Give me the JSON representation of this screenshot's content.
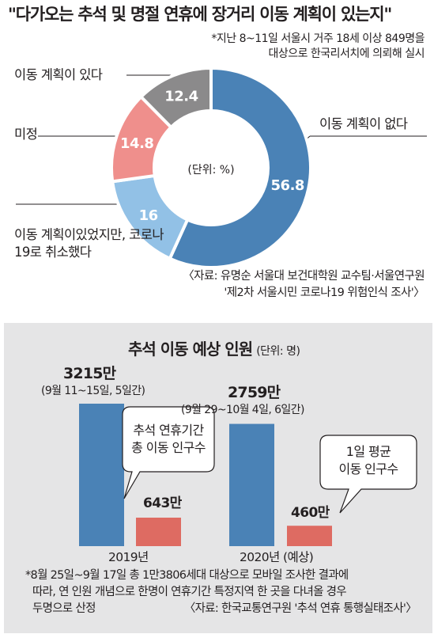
{
  "title": "\"다가오는 추석 및 명절 연휴에 장거리 이동 계획이 있는지\"",
  "survey_note": [
    "*지난 8~11일 서울시 거주 18세 이상 849명을",
    "대상으로 한국리서치에 의뢰해 실시"
  ],
  "pie_unit": "(단위: %)",
  "pie_source": [
    "〈자료: 유명순 서울대 보건대학원 교수팀·서울연구원",
    "'제2차 서울시민 코로나19 위험인식 조사'〉"
  ],
  "bar_title": "추석 이동 예상 인원",
  "bar_unit": "(단위: 명)",
  "callout_total": [
    "추석 연휴기간",
    "총 이동 인구수"
  ],
  "callout_daily": [
    "1일 평균",
    "이동 인구수"
  ],
  "footnote": [
    "*8월 25일~9월 17일 총 1만3806세대 대상으로 모바일 조사한 결과에",
    "따라, 연 인원 개념으로 한명이 연휴기간 특정지역 한 곳을 다녀올 경우",
    "두명으로 산정"
  ],
  "bar_source": "〈자료: 한국교통연구원 '추석 연휴 통행실태조사'〉",
  "colors": {
    "blue": "#4a82b6",
    "lightblue": "#92c1e6",
    "pink": "#ef8f8c",
    "gray": "#8b8a8b",
    "red": "#de6b62",
    "panel": "#e5e5e6"
  },
  "chart_data": [
    {
      "type": "pie",
      "slices": [
        {
          "label": "이동 계획이 없다",
          "value": 56.8,
          "display": "56.8",
          "color": "#4a82b6"
        },
        {
          "label": "이동 계획이있었지만, 코로나19로 취소했다",
          "value": 16,
          "display": "16",
          "color": "#92c1e6"
        },
        {
          "label": "미정",
          "value": 14.8,
          "display": "14.8",
          "color": "#ef8f8c"
        },
        {
          "label": "이동 계획이 있다",
          "value": 12.4,
          "display": "12.4",
          "color": "#8b8a8b"
        }
      ]
    },
    {
      "type": "bar",
      "categories": [
        "2019년",
        "2020년 (예상)"
      ],
      "periods": [
        "(9월 11~15일, 5일간)",
        "(9월 29~10월 4일, 6일간)"
      ],
      "series": [
        {
          "values": [
            32150000,
            27590000
          ],
          "labels": [
            "3215만",
            "2759만"
          ],
          "color": "#4a82b6"
        },
        {
          "values": [
            6430000,
            4600000
          ],
          "labels": [
            "643만",
            "460만"
          ],
          "color": "#de6b62"
        }
      ]
    }
  ]
}
